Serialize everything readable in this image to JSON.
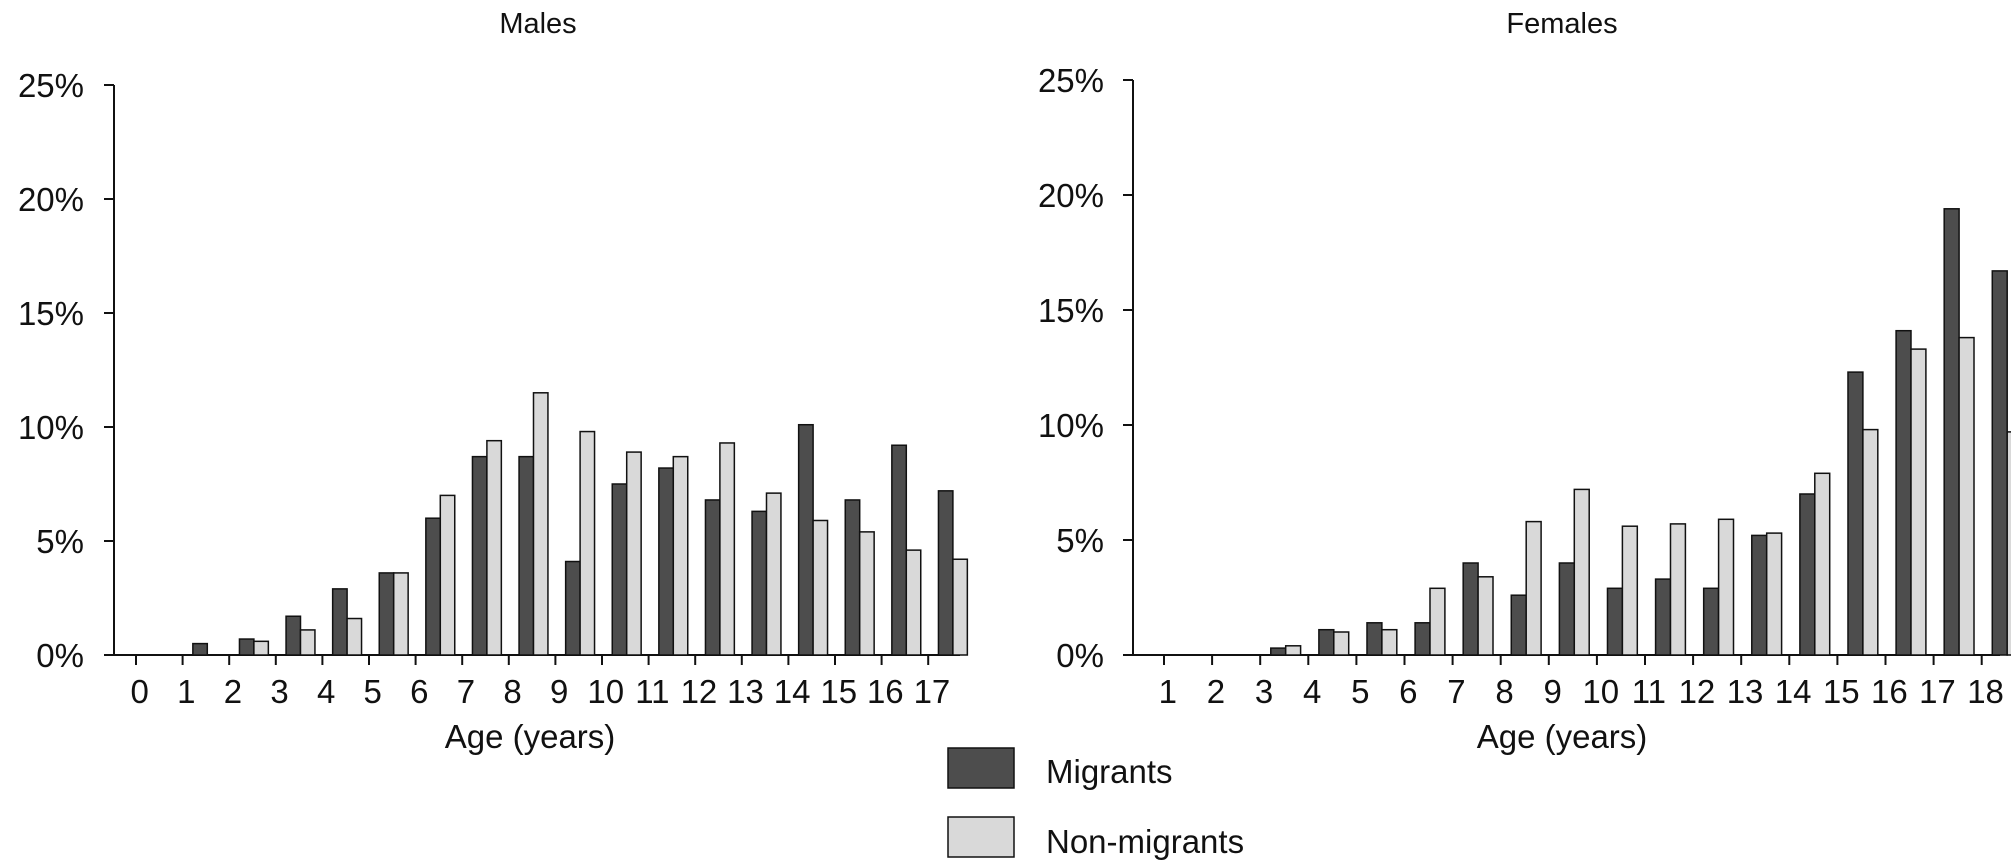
{
  "chart_data": [
    {
      "type": "bar",
      "title": "Males",
      "xlabel": "Age (years)",
      "ylabel": "",
      "ylim": [
        0,
        25
      ],
      "ytick_labels": [
        "0%",
        "5%",
        "10%",
        "15%",
        "20%",
        "25%"
      ],
      "yticks": [
        0,
        5,
        10,
        15,
        20,
        25
      ],
      "categories": [
        "0",
        "1",
        "2",
        "3",
        "4",
        "5",
        "6",
        "7",
        "8",
        "9",
        "10",
        "11",
        "12",
        "13",
        "14",
        "15",
        "16",
        "17"
      ],
      "series": [
        {
          "name": "Migrants",
          "values": [
            0.0,
            0.5,
            0.7,
            1.7,
            2.9,
            3.6,
            6.0,
            8.7,
            8.7,
            4.1,
            7.5,
            8.2,
            6.8,
            6.3,
            10.1,
            6.8,
            9.2,
            7.2
          ]
        },
        {
          "name": "Non-migrants",
          "values": [
            0.0,
            0.0,
            0.6,
            1.1,
            1.6,
            3.6,
            7.0,
            9.4,
            11.5,
            9.8,
            8.9,
            8.7,
            9.3,
            7.1,
            5.9,
            5.4,
            4.6,
            4.2
          ]
        }
      ],
      "legend": "bottom-center",
      "grid": false
    },
    {
      "type": "bar",
      "title": "Females",
      "xlabel": "Age (years)",
      "ylabel": "",
      "ylim": [
        0,
        25
      ],
      "ytick_labels": [
        "0%",
        "5%",
        "10%",
        "15%",
        "20%",
        "25%"
      ],
      "yticks": [
        0,
        5,
        10,
        15,
        20,
        25
      ],
      "categories": [
        "1",
        "2",
        "3",
        "4",
        "5",
        "6",
        "7",
        "8",
        "9",
        "10",
        "11",
        "12",
        "13",
        "14",
        "15",
        "16",
        "17",
        "18"
      ],
      "series": [
        {
          "name": "Migrants",
          "values": [
            0.0,
            0.0,
            0.3,
            1.1,
            1.4,
            1.4,
            4.0,
            2.6,
            4.0,
            2.9,
            3.3,
            2.9,
            5.2,
            7.0,
            12.3,
            14.1,
            19.4,
            16.7
          ]
        },
        {
          "name": "Non-migrants",
          "values": [
            0.0,
            0.0,
            0.4,
            1.0,
            1.1,
            2.9,
            3.4,
            5.8,
            7.2,
            5.6,
            5.7,
            5.9,
            5.3,
            7.9,
            9.8,
            13.3,
            13.8,
            9.7
          ]
        }
      ],
      "legend": "bottom-center",
      "grid": false
    }
  ],
  "legend": {
    "items": [
      {
        "label": "Migrants",
        "color": "#4d4d4d"
      },
      {
        "label": "Non-migrants",
        "color": "#d9d9d9"
      }
    ]
  }
}
